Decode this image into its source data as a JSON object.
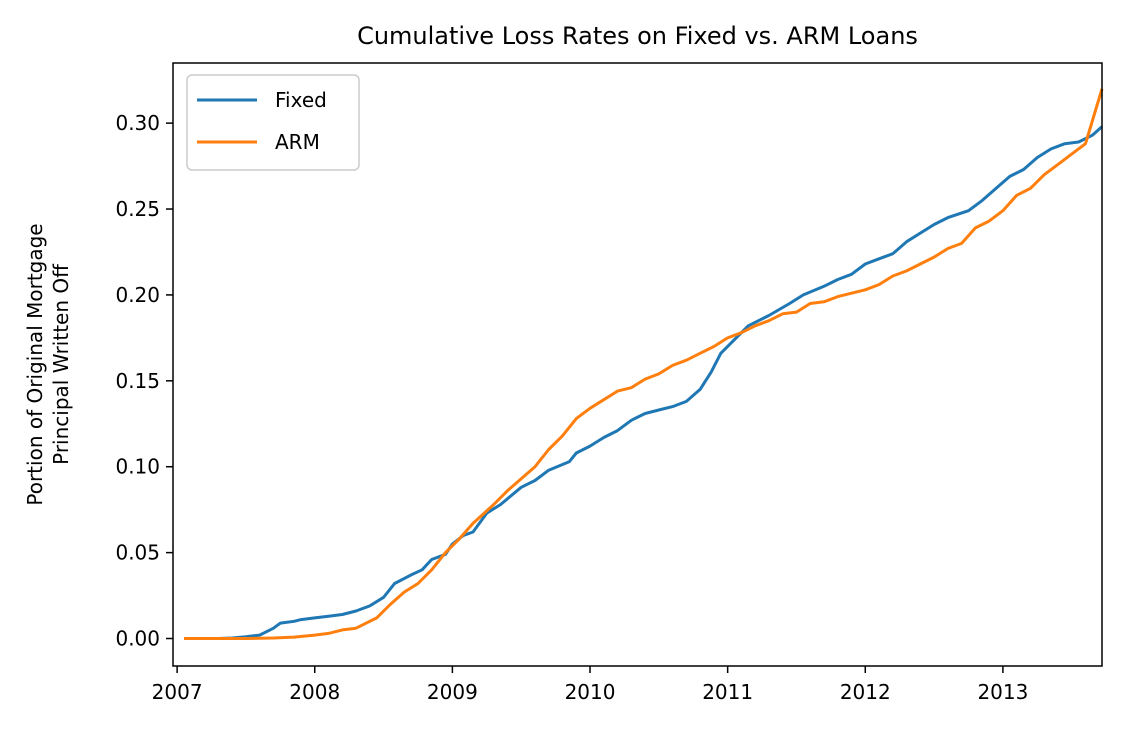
{
  "chart_data": {
    "type": "line",
    "title": "Cumulative Loss Rates on Fixed vs. ARM Loans",
    "xlabel": "",
    "ylabel_lines": [
      "Portion of Original Mortgage",
      "Principal Written Off"
    ],
    "xlim": [
      2006.97,
      2013.72
    ],
    "ylim": [
      -0.016,
      0.335
    ],
    "xticks": [
      2007,
      2008,
      2009,
      2010,
      2011,
      2012,
      2013
    ],
    "xtick_labels": [
      "2007",
      "2008",
      "2009",
      "2010",
      "2011",
      "2012",
      "2013"
    ],
    "yticks": [
      0.0,
      0.05,
      0.1,
      0.15,
      0.2,
      0.25,
      0.3
    ],
    "ytick_labels": [
      "0.00",
      "0.05",
      "0.10",
      "0.15",
      "0.20",
      "0.25",
      "0.30"
    ],
    "grid": false,
    "legend": "upper-left",
    "series": [
      {
        "name": "Fixed",
        "color": "#1f77b4",
        "points": [
          [
            2007.05,
            0.0
          ],
          [
            2007.2,
            0.0
          ],
          [
            2007.3,
            0.0
          ],
          [
            2007.4,
            0.0003
          ],
          [
            2007.5,
            0.001
          ],
          [
            2007.6,
            0.002
          ],
          [
            2007.7,
            0.006
          ],
          [
            2007.75,
            0.009
          ],
          [
            2007.85,
            0.01
          ],
          [
            2007.9,
            0.011
          ],
          [
            2008.0,
            0.012
          ],
          [
            2008.1,
            0.013
          ],
          [
            2008.2,
            0.014
          ],
          [
            2008.3,
            0.016
          ],
          [
            2008.4,
            0.019
          ],
          [
            2008.5,
            0.024
          ],
          [
            2008.58,
            0.032
          ],
          [
            2008.7,
            0.037
          ],
          [
            2008.78,
            0.04
          ],
          [
            2008.85,
            0.046
          ],
          [
            2008.95,
            0.049
          ],
          [
            2009.0,
            0.055
          ],
          [
            2009.08,
            0.06
          ],
          [
            2009.15,
            0.062
          ],
          [
            2009.25,
            0.073
          ],
          [
            2009.35,
            0.078
          ],
          [
            2009.5,
            0.088
          ],
          [
            2009.6,
            0.092
          ],
          [
            2009.7,
            0.098
          ],
          [
            2009.85,
            0.103
          ],
          [
            2009.9,
            0.108
          ],
          [
            2010.0,
            0.112
          ],
          [
            2010.1,
            0.117
          ],
          [
            2010.2,
            0.121
          ],
          [
            2010.3,
            0.127
          ],
          [
            2010.4,
            0.131
          ],
          [
            2010.5,
            0.133
          ],
          [
            2010.6,
            0.135
          ],
          [
            2010.7,
            0.138
          ],
          [
            2010.8,
            0.145
          ],
          [
            2010.88,
            0.155
          ],
          [
            2010.95,
            0.166
          ],
          [
            2011.05,
            0.174
          ],
          [
            2011.15,
            0.182
          ],
          [
            2011.3,
            0.188
          ],
          [
            2011.45,
            0.195
          ],
          [
            2011.55,
            0.2
          ],
          [
            2011.7,
            0.205
          ],
          [
            2011.8,
            0.209
          ],
          [
            2011.9,
            0.212
          ],
          [
            2012.0,
            0.218
          ],
          [
            2012.1,
            0.221
          ],
          [
            2012.2,
            0.224
          ],
          [
            2012.3,
            0.231
          ],
          [
            2012.4,
            0.236
          ],
          [
            2012.5,
            0.241
          ],
          [
            2012.6,
            0.245
          ],
          [
            2012.75,
            0.249
          ],
          [
            2012.85,
            0.255
          ],
          [
            2012.95,
            0.262
          ],
          [
            2013.05,
            0.269
          ],
          [
            2013.15,
            0.273
          ],
          [
            2013.25,
            0.28
          ],
          [
            2013.35,
            0.285
          ],
          [
            2013.45,
            0.288
          ],
          [
            2013.55,
            0.289
          ],
          [
            2013.65,
            0.293
          ],
          [
            2013.72,
            0.298
          ]
        ]
      },
      {
        "name": "ARM",
        "color": "#ff7f0e",
        "points": [
          [
            2007.05,
            0.0
          ],
          [
            2007.3,
            0.0
          ],
          [
            2007.5,
            0.0
          ],
          [
            2007.7,
            0.0003
          ],
          [
            2007.85,
            0.0008
          ],
          [
            2008.0,
            0.002
          ],
          [
            2008.1,
            0.003
          ],
          [
            2008.2,
            0.005
          ],
          [
            2008.3,
            0.006
          ],
          [
            2008.4,
            0.01
          ],
          [
            2008.45,
            0.012
          ],
          [
            2008.55,
            0.02
          ],
          [
            2008.65,
            0.027
          ],
          [
            2008.75,
            0.032
          ],
          [
            2008.85,
            0.04
          ],
          [
            2008.95,
            0.05
          ],
          [
            2009.05,
            0.058
          ],
          [
            2009.15,
            0.067
          ],
          [
            2009.3,
            0.078
          ],
          [
            2009.4,
            0.086
          ],
          [
            2009.5,
            0.093
          ],
          [
            2009.6,
            0.1
          ],
          [
            2009.7,
            0.11
          ],
          [
            2009.8,
            0.118
          ],
          [
            2009.9,
            0.128
          ],
          [
            2010.0,
            0.134
          ],
          [
            2010.1,
            0.139
          ],
          [
            2010.2,
            0.144
          ],
          [
            2010.3,
            0.146
          ],
          [
            2010.4,
            0.151
          ],
          [
            2010.5,
            0.154
          ],
          [
            2010.6,
            0.159
          ],
          [
            2010.7,
            0.162
          ],
          [
            2010.8,
            0.166
          ],
          [
            2010.9,
            0.17
          ],
          [
            2011.0,
            0.175
          ],
          [
            2011.1,
            0.178
          ],
          [
            2011.2,
            0.182
          ],
          [
            2011.3,
            0.185
          ],
          [
            2011.4,
            0.189
          ],
          [
            2011.5,
            0.19
          ],
          [
            2011.6,
            0.195
          ],
          [
            2011.7,
            0.196
          ],
          [
            2011.8,
            0.199
          ],
          [
            2011.9,
            0.201
          ],
          [
            2012.0,
            0.203
          ],
          [
            2012.1,
            0.206
          ],
          [
            2012.2,
            0.211
          ],
          [
            2012.3,
            0.214
          ],
          [
            2012.4,
            0.218
          ],
          [
            2012.5,
            0.222
          ],
          [
            2012.6,
            0.227
          ],
          [
            2012.7,
            0.23
          ],
          [
            2012.8,
            0.239
          ],
          [
            2012.9,
            0.243
          ],
          [
            2013.0,
            0.249
          ],
          [
            2013.1,
            0.258
          ],
          [
            2013.2,
            0.262
          ],
          [
            2013.3,
            0.27
          ],
          [
            2013.4,
            0.276
          ],
          [
            2013.5,
            0.282
          ],
          [
            2013.6,
            0.288
          ],
          [
            2013.72,
            0.32
          ]
        ]
      }
    ]
  }
}
